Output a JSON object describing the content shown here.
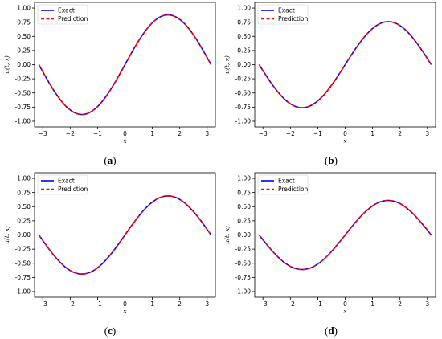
{
  "chart_data": [
    {
      "type": "line",
      "caption": "a",
      "xlabel": "x",
      "ylabel": "u(t, x)",
      "xlim": [
        -3.3,
        3.3
      ],
      "ylim": [
        -1.1,
        1.1
      ],
      "xticks": [
        -3,
        -2,
        -1,
        0,
        1,
        2,
        3
      ],
      "yticks": [
        -1.0,
        -0.75,
        -0.5,
        -0.25,
        0.0,
        0.25,
        0.5,
        0.75,
        1.0
      ],
      "amplitude": 0.88,
      "x_range": [
        -3.14159,
        3.14159
      ],
      "series": [
        {
          "name": "Exact",
          "color": "#0000ff",
          "style": "solid"
        },
        {
          "name": "Prediction",
          "color": "#ff0000",
          "style": "dashed"
        }
      ],
      "legend": "top-left",
      "grid": false
    },
    {
      "type": "line",
      "caption": "b",
      "xlabel": "x",
      "ylabel": "u(t, x)",
      "xlim": [
        -3.3,
        3.3
      ],
      "ylim": [
        -1.1,
        1.1
      ],
      "xticks": [
        -3,
        -2,
        -1,
        0,
        1,
        2,
        3
      ],
      "yticks": [
        -1.0,
        -0.75,
        -0.5,
        -0.25,
        0.0,
        0.25,
        0.5,
        0.75,
        1.0
      ],
      "amplitude": 0.76,
      "x_range": [
        -3.14159,
        3.14159
      ],
      "series": [
        {
          "name": "Exact",
          "color": "#0000ff",
          "style": "solid"
        },
        {
          "name": "Prediction",
          "color": "#ff0000",
          "style": "dashed"
        }
      ],
      "legend": "top-left",
      "grid": false
    },
    {
      "type": "line",
      "caption": "c",
      "xlabel": "x",
      "ylabel": "u(t, x)",
      "xlim": [
        -3.3,
        3.3
      ],
      "ylim": [
        -1.1,
        1.1
      ],
      "xticks": [
        -3,
        -2,
        -1,
        0,
        1,
        2,
        3
      ],
      "yticks": [
        -1.0,
        -0.75,
        -0.5,
        -0.25,
        0.0,
        0.25,
        0.5,
        0.75,
        1.0
      ],
      "amplitude": 0.69,
      "x_range": [
        -3.14159,
        3.14159
      ],
      "series": [
        {
          "name": "Exact",
          "color": "#0000ff",
          "style": "solid"
        },
        {
          "name": "Prediction",
          "color": "#ff0000",
          "style": "dashed"
        }
      ],
      "legend": "top-left",
      "grid": false
    },
    {
      "type": "line",
      "caption": "d",
      "xlabel": "x",
      "ylabel": "u(t, x)",
      "xlim": [
        -3.3,
        3.3
      ],
      "ylim": [
        -1.1,
        1.1
      ],
      "xticks": [
        -3,
        -2,
        -1,
        0,
        1,
        2,
        3
      ],
      "yticks": [
        -1.0,
        -0.75,
        -0.5,
        -0.25,
        0.0,
        0.25,
        0.5,
        0.75,
        1.0
      ],
      "amplitude": 0.61,
      "x_range": [
        -3.14159,
        3.14159
      ],
      "series": [
        {
          "name": "Exact",
          "color": "#0000ff",
          "style": "solid"
        },
        {
          "name": "Prediction",
          "color": "#ff0000",
          "style": "dashed"
        }
      ],
      "legend": "top-left",
      "grid": false
    }
  ]
}
